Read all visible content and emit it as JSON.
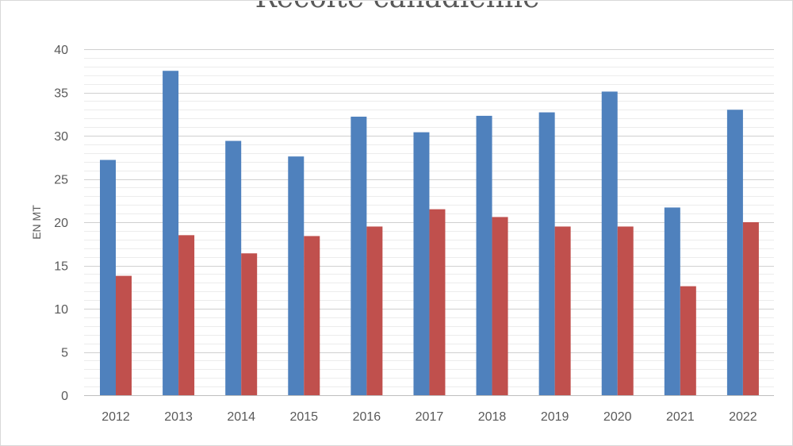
{
  "chart_data": {
    "type": "bar",
    "title": "Recolte canadienne",
    "xlabel": "",
    "ylabel": "EN MT",
    "categories": [
      "2012",
      "2013",
      "2014",
      "2015",
      "2016",
      "2017",
      "2018",
      "2019",
      "2020",
      "2021",
      "2022"
    ],
    "series": [
      {
        "color": "#4f81bd",
        "values": [
          27.2,
          37.5,
          29.4,
          27.6,
          32.2,
          30.4,
          32.3,
          32.7,
          35.1,
          21.7,
          33.0
        ]
      },
      {
        "color": "#c0504d",
        "values": [
          13.8,
          18.5,
          16.4,
          18.4,
          19.5,
          21.5,
          20.6,
          19.5,
          19.5,
          12.6,
          20.0
        ]
      }
    ],
    "ylim": [
      0,
      40
    ],
    "yticks": [
      "0",
      "5",
      "10",
      "15",
      "20",
      "25",
      "30",
      "35",
      "40"
    ],
    "grid": true
  }
}
